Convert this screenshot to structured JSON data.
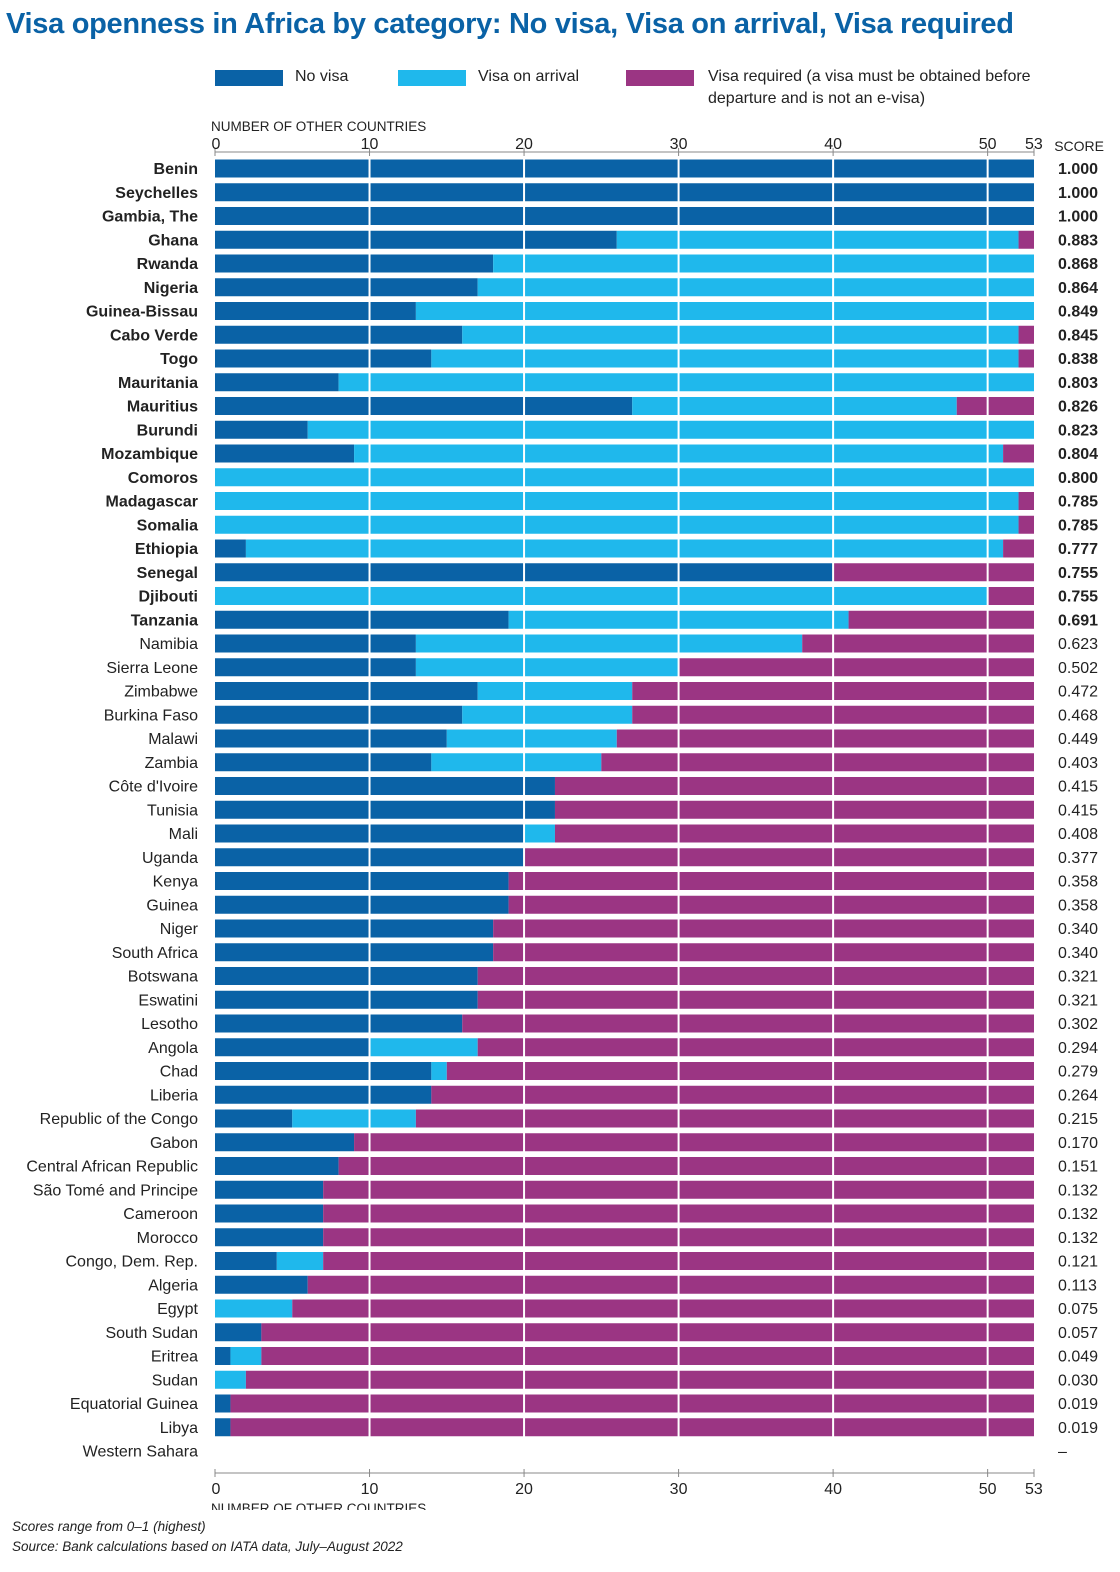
{
  "title": "Visa openness in Africa by category: No visa, Visa on arrival, Visa required",
  "legend": [
    {
      "label": "No visa",
      "color": "#0a62a6"
    },
    {
      "label": "Visa on arrival",
      "color": "#1fb8ec"
    },
    {
      "label": "Visa required (a visa must be obtained before departure and is not an e-visa)",
      "color": "#9b3583"
    }
  ],
  "footnote": {
    "line1": "Scores range from 0–1 (highest)",
    "line2": "Source: Bank calculations based on IATA data, July–August 2022"
  },
  "chart_data": {
    "type": "bar",
    "orientation": "horizontal",
    "stacked": true,
    "xlabel": "NUMBER OF OTHER COUNTRIES",
    "score_label": "SCORE",
    "xlim": [
      0,
      53
    ],
    "xticks": [
      0,
      10,
      20,
      30,
      40,
      50,
      53
    ],
    "grid": true,
    "series": [
      {
        "name": "No visa",
        "color": "#0a62a6"
      },
      {
        "name": "Visa on arrival",
        "color": "#1fb8ec"
      },
      {
        "name": "Visa required (a visa must be obtained before departure and is not an e-visa)",
        "color": "#9b3583"
      }
    ],
    "rows": [
      {
        "country": "Benin",
        "no_visa": 53,
        "on_arrival": 0,
        "required": 0,
        "score": "1.000",
        "bold": true
      },
      {
        "country": "Seychelles",
        "no_visa": 53,
        "on_arrival": 0,
        "required": 0,
        "score": "1.000",
        "bold": true
      },
      {
        "country": "Gambia, The",
        "no_visa": 53,
        "on_arrival": 0,
        "required": 0,
        "score": "1.000",
        "bold": true
      },
      {
        "country": "Ghana",
        "no_visa": 26,
        "on_arrival": 26,
        "required": 1,
        "score": "0.883",
        "bold": true
      },
      {
        "country": "Rwanda",
        "no_visa": 18,
        "on_arrival": 35,
        "required": 0,
        "score": "0.868",
        "bold": true
      },
      {
        "country": "Nigeria",
        "no_visa": 17,
        "on_arrival": 36,
        "required": 0,
        "score": "0.864",
        "bold": true
      },
      {
        "country": "Guinea-Bissau",
        "no_visa": 13,
        "on_arrival": 40,
        "required": 0,
        "score": "0.849",
        "bold": true
      },
      {
        "country": "Cabo Verde",
        "no_visa": 16,
        "on_arrival": 36,
        "required": 1,
        "score": "0.845",
        "bold": true
      },
      {
        "country": "Togo",
        "no_visa": 14,
        "on_arrival": 38,
        "required": 1,
        "score": "0.838",
        "bold": true
      },
      {
        "country": "Mauritania",
        "no_visa": 8,
        "on_arrival": 45,
        "required": 0,
        "score": "0.803",
        "bold": true
      },
      {
        "country": "Mauritius",
        "no_visa": 27,
        "on_arrival": 21,
        "required": 5,
        "score": "0.826",
        "bold": true
      },
      {
        "country": "Burundi",
        "no_visa": 6,
        "on_arrival": 47,
        "required": 0,
        "score": "0.823",
        "bold": true
      },
      {
        "country": "Mozambique",
        "no_visa": 9,
        "on_arrival": 42,
        "required": 2,
        "score": "0.804",
        "bold": true
      },
      {
        "country": "Comoros",
        "no_visa": 0,
        "on_arrival": 53,
        "required": 0,
        "score": "0.800",
        "bold": true
      },
      {
        "country": "Madagascar",
        "no_visa": 0,
        "on_arrival": 52,
        "required": 1,
        "score": "0.785",
        "bold": true
      },
      {
        "country": "Somalia",
        "no_visa": 0,
        "on_arrival": 52,
        "required": 1,
        "score": "0.785",
        "bold": true
      },
      {
        "country": "Ethiopia",
        "no_visa": 2,
        "on_arrival": 49,
        "required": 2,
        "score": "0.777",
        "bold": true
      },
      {
        "country": "Senegal",
        "no_visa": 40,
        "on_arrival": 0,
        "required": 13,
        "score": "0.755",
        "bold": true
      },
      {
        "country": "Djibouti",
        "no_visa": 0,
        "on_arrival": 50,
        "required": 3,
        "score": "0.755",
        "bold": true
      },
      {
        "country": "Tanzania",
        "no_visa": 19,
        "on_arrival": 22,
        "required": 12,
        "score": "0.691",
        "bold": true
      },
      {
        "country": "Namibia",
        "no_visa": 13,
        "on_arrival": 25,
        "required": 15,
        "score": "0.623",
        "bold": false
      },
      {
        "country": "Sierra Leone",
        "no_visa": 13,
        "on_arrival": 17,
        "required": 23,
        "score": "0.502",
        "bold": false
      },
      {
        "country": "Zimbabwe",
        "no_visa": 17,
        "on_arrival": 10,
        "required": 26,
        "score": "0.472",
        "bold": false
      },
      {
        "country": "Burkina Faso",
        "no_visa": 16,
        "on_arrival": 11,
        "required": 26,
        "score": "0.468",
        "bold": false
      },
      {
        "country": "Malawi",
        "no_visa": 15,
        "on_arrival": 11,
        "required": 27,
        "score": "0.449",
        "bold": false
      },
      {
        "country": "Zambia",
        "no_visa": 14,
        "on_arrival": 11,
        "required": 28,
        "score": "0.403",
        "bold": false
      },
      {
        "country": "Côte d'Ivoire",
        "no_visa": 22,
        "on_arrival": 0,
        "required": 31,
        "score": "0.415",
        "bold": false
      },
      {
        "country": "Tunisia",
        "no_visa": 22,
        "on_arrival": 0,
        "required": 31,
        "score": "0.415",
        "bold": false
      },
      {
        "country": "Mali",
        "no_visa": 20,
        "on_arrival": 2,
        "required": 31,
        "score": "0.408",
        "bold": false
      },
      {
        "country": "Uganda",
        "no_visa": 20,
        "on_arrival": 0,
        "required": 33,
        "score": "0.377",
        "bold": false
      },
      {
        "country": "Kenya",
        "no_visa": 19,
        "on_arrival": 0,
        "required": 34,
        "score": "0.358",
        "bold": false
      },
      {
        "country": "Guinea",
        "no_visa": 19,
        "on_arrival": 0,
        "required": 34,
        "score": "0.358",
        "bold": false
      },
      {
        "country": "Niger",
        "no_visa": 18,
        "on_arrival": 0,
        "required": 35,
        "score": "0.340",
        "bold": false
      },
      {
        "country": "South Africa",
        "no_visa": 18,
        "on_arrival": 0,
        "required": 35,
        "score": "0.340",
        "bold": false
      },
      {
        "country": "Botswana",
        "no_visa": 17,
        "on_arrival": 0,
        "required": 36,
        "score": "0.321",
        "bold": false
      },
      {
        "country": "Eswatini",
        "no_visa": 17,
        "on_arrival": 0,
        "required": 36,
        "score": "0.321",
        "bold": false
      },
      {
        "country": "Lesotho",
        "no_visa": 16,
        "on_arrival": 0,
        "required": 37,
        "score": "0.302",
        "bold": false
      },
      {
        "country": "Angola",
        "no_visa": 10,
        "on_arrival": 7,
        "required": 36,
        "score": "0.294",
        "bold": false
      },
      {
        "country": "Chad",
        "no_visa": 14,
        "on_arrival": 1,
        "required": 38,
        "score": "0.279",
        "bold": false
      },
      {
        "country": "Liberia",
        "no_visa": 14,
        "on_arrival": 0,
        "required": 39,
        "score": "0.264",
        "bold": false
      },
      {
        "country": "Republic of the Congo",
        "no_visa": 5,
        "on_arrival": 8,
        "required": 40,
        "score": "0.215",
        "bold": false
      },
      {
        "country": "Gabon",
        "no_visa": 9,
        "on_arrival": 0,
        "required": 44,
        "score": "0.170",
        "bold": false
      },
      {
        "country": "Central African Republic",
        "no_visa": 8,
        "on_arrival": 0,
        "required": 45,
        "score": "0.151",
        "bold": false
      },
      {
        "country": "São Tomé and Principe",
        "no_visa": 7,
        "on_arrival": 0,
        "required": 46,
        "score": "0.132",
        "bold": false
      },
      {
        "country": "Cameroon",
        "no_visa": 7,
        "on_arrival": 0,
        "required": 46,
        "score": "0.132",
        "bold": false
      },
      {
        "country": "Morocco",
        "no_visa": 7,
        "on_arrival": 0,
        "required": 46,
        "score": "0.132",
        "bold": false
      },
      {
        "country": "Congo, Dem. Rep.",
        "no_visa": 4,
        "on_arrival": 3,
        "required": 46,
        "score": "0.121",
        "bold": false
      },
      {
        "country": "Algeria",
        "no_visa": 6,
        "on_arrival": 0,
        "required": 47,
        "score": "0.113",
        "bold": false
      },
      {
        "country": "Egypt",
        "no_visa": 0,
        "on_arrival": 5,
        "required": 48,
        "score": "0.075",
        "bold": false
      },
      {
        "country": "South Sudan",
        "no_visa": 3,
        "on_arrival": 0,
        "required": 50,
        "score": "0.057",
        "bold": false
      },
      {
        "country": "Eritrea",
        "no_visa": 1,
        "on_arrival": 2,
        "required": 50,
        "score": "0.049",
        "bold": false
      },
      {
        "country": "Sudan",
        "no_visa": 0,
        "on_arrival": 2,
        "required": 51,
        "score": "0.030",
        "bold": false
      },
      {
        "country": "Equatorial Guinea",
        "no_visa": 1,
        "on_arrival": 0,
        "required": 52,
        "score": "0.019",
        "bold": false
      },
      {
        "country": "Libya",
        "no_visa": 1,
        "on_arrival": 0,
        "required": 52,
        "score": "0.019",
        "bold": false
      },
      {
        "country": "Western Sahara",
        "no_visa": 0,
        "on_arrival": 0,
        "required": 0,
        "score": "–",
        "bold": false
      }
    ]
  }
}
